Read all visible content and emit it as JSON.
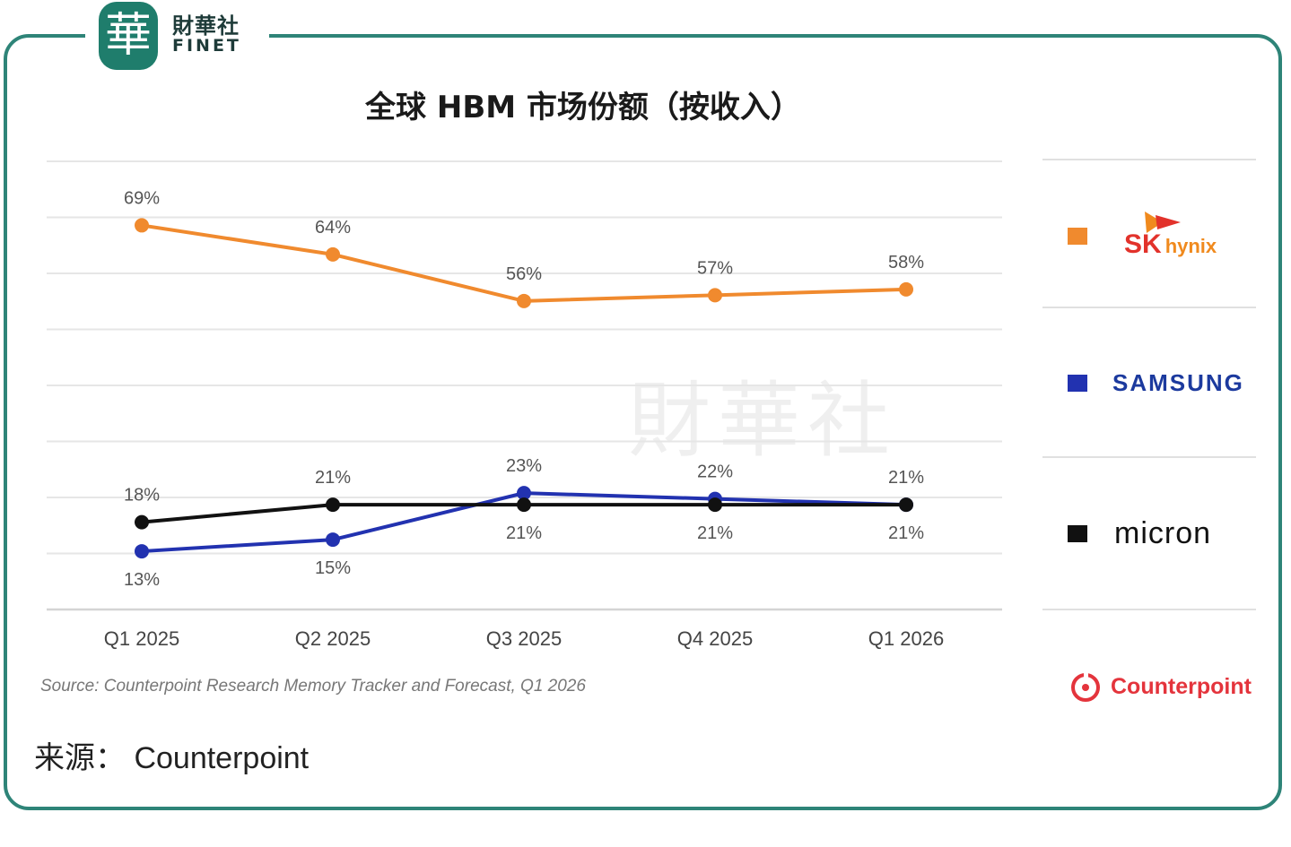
{
  "header": {
    "logo_char": "華",
    "logo_cn": "財華社",
    "logo_en": "FINET"
  },
  "watermark_text": "財華社",
  "colors": {
    "frame": "#2e8478",
    "sk_hynix": "#f08a2e",
    "samsung": "#2232b0",
    "micron": "#111111",
    "counterpoint": "#e4343c"
  },
  "chart_data": {
    "type": "line",
    "title": "全球 HBM 市场份额（按收入）",
    "categories": [
      "Q1 2025",
      "Q2 2025",
      "Q3 2025",
      "Q4 2025",
      "Q1 2026"
    ],
    "series": [
      {
        "name": "SK hynix",
        "color": "#f08a2e",
        "values": [
          69,
          64,
          56,
          57,
          58
        ],
        "labels": [
          "69%",
          "64%",
          "56%",
          "57%",
          "58%"
        ]
      },
      {
        "name": "SAMSUNG",
        "color": "#2232b0",
        "values": [
          13,
          15,
          23,
          22,
          21
        ],
        "labels": [
          "13%",
          "15%",
          "23%",
          "22%",
          "21%"
        ]
      },
      {
        "name": "micron",
        "color": "#111111",
        "values": [
          18,
          21,
          21,
          21,
          21
        ],
        "labels": [
          "18%",
          "21%",
          "21%",
          "21%",
          "21%"
        ]
      }
    ],
    "ylim": [
      3,
      80
    ],
    "grid": true,
    "legend_position": "right"
  },
  "legend": {
    "sk_main": "SK",
    "sk_sub": "hynix",
    "samsung": "SAMSUNG",
    "micron": "micron"
  },
  "footer": {
    "source": "Source: Counterpoint Research Memory Tracker and Forecast, Q1 2026",
    "counterpoint_logo": "Counterpoint",
    "caption": "来源： Counterpoint"
  }
}
